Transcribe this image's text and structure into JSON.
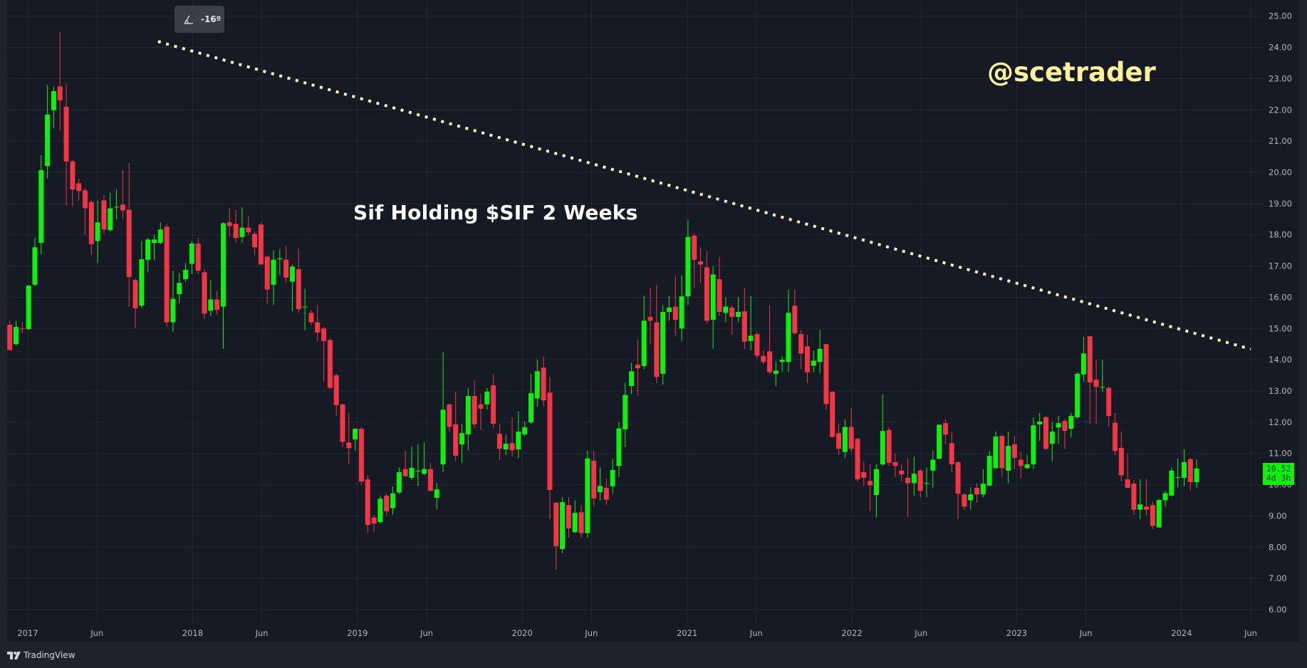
{
  "chart_title": "Sif Holding $SIF 2 Weeks",
  "watermark": "@scetrader",
  "angle_tooltip": {
    "icon": "angle-icon",
    "value": "-16º"
  },
  "last_price": {
    "value": "10.52",
    "countdown": "4d 3h",
    "color": "#0ef10e"
  },
  "footer": {
    "brand": "TradingView",
    "icon": "tradingview-logo-icon"
  },
  "colors": {
    "up": "#0ef10e",
    "down": "#f23645",
    "trendline": "#fff5c2",
    "background": "#161a25",
    "grid": "#242836"
  },
  "chart_data": {
    "type": "candlestick",
    "interval": "2W",
    "title": "Sif Holding $SIF 2 Weeks",
    "ylim": [
      6,
      25
    ],
    "y_ticks": [
      "6.00",
      "7.00",
      "8.00",
      "9.00",
      "10.00",
      "11.00",
      "12.00",
      "13.00",
      "14.00",
      "15.00",
      "16.00",
      "17.00",
      "18.00",
      "19.00",
      "20.00",
      "21.00",
      "22.00",
      "23.00",
      "24.00",
      "25.00"
    ],
    "x_ticks": [
      {
        "label": "2017",
        "t": 2017.0
      },
      {
        "label": "Jun",
        "t": 2017.42
      },
      {
        "label": "2018",
        "t": 2018.0
      },
      {
        "label": "Jun",
        "t": 2018.42
      },
      {
        "label": "2019",
        "t": 2019.0
      },
      {
        "label": "Jun",
        "t": 2019.42
      },
      {
        "label": "2020",
        "t": 2020.0
      },
      {
        "label": "Jun",
        "t": 2020.42
      },
      {
        "label": "2021",
        "t": 2021.0
      },
      {
        "label": "Jun",
        "t": 2021.42
      },
      {
        "label": "2022",
        "t": 2022.0
      },
      {
        "label": "Jun",
        "t": 2022.42
      },
      {
        "label": "2023",
        "t": 2023.0
      },
      {
        "label": "Jun",
        "t": 2023.42
      },
      {
        "label": "2024",
        "t": 2024.0
      },
      {
        "label": "Jun",
        "t": 2024.42
      }
    ],
    "first_bar_t": 2016.89,
    "bars_per_year": 26.1,
    "trendline": {
      "style": "dotted",
      "start": {
        "t": 2017.79,
        "price": 24.19
      },
      "end": {
        "t": 2024.42,
        "price": 14.34
      },
      "angle": "-16º"
    },
    "ohlc": [
      [
        15.12,
        15.25,
        14.3,
        14.31
      ],
      [
        14.5,
        15.25,
        14.45,
        15.05
      ],
      [
        15.0,
        15.2,
        14.85,
        14.98
      ],
      [
        14.98,
        16.4,
        14.95,
        16.37
      ],
      [
        16.4,
        17.9,
        16.35,
        17.6
      ],
      [
        17.74,
        20.55,
        17.38,
        20.07
      ],
      [
        20.2,
        22.8,
        19.8,
        21.85
      ],
      [
        21.99,
        22.75,
        21.4,
        22.6
      ],
      [
        22.75,
        24.5,
        21.35,
        22.3
      ],
      [
        22.1,
        22.85,
        18.95,
        20.35
      ],
      [
        20.35,
        20.4,
        18.9,
        19.45
      ],
      [
        19.65,
        19.8,
        19.1,
        19.4
      ],
      [
        19.42,
        19.5,
        18.0,
        18.85
      ],
      [
        19.05,
        19.1,
        17.35,
        17.7
      ],
      [
        17.8,
        19.1,
        17.1,
        18.4
      ],
      [
        19.1,
        19.27,
        18.03,
        18.17
      ],
      [
        18.15,
        19.35,
        18.1,
        18.85
      ],
      [
        18.9,
        19.45,
        18.5,
        18.9
      ],
      [
        18.97,
        20.07,
        18.5,
        18.78
      ],
      [
        18.8,
        20.3,
        15.7,
        16.65
      ],
      [
        16.55,
        16.6,
        15.0,
        15.65
      ],
      [
        15.73,
        17.8,
        15.65,
        17.22
      ],
      [
        17.2,
        17.9,
        16.8,
        17.85
      ],
      [
        17.74,
        18.0,
        17.2,
        17.85
      ],
      [
        17.74,
        18.4,
        17.7,
        18.17
      ],
      [
        18.26,
        18.35,
        15.05,
        15.2
      ],
      [
        15.2,
        16.85,
        14.9,
        15.95
      ],
      [
        16.1,
        16.78,
        15.8,
        16.46
      ],
      [
        16.58,
        17.1,
        16.5,
        16.88
      ],
      [
        17.07,
        17.8,
        16.74,
        17.72
      ],
      [
        17.72,
        17.9,
        16.75,
        16.85
      ],
      [
        16.8,
        16.9,
        15.3,
        15.48
      ],
      [
        15.57,
        16.55,
        15.4,
        15.93
      ],
      [
        15.93,
        16.2,
        15.45,
        15.6
      ],
      [
        15.7,
        18.4,
        14.35,
        18.37
      ],
      [
        18.4,
        18.85,
        17.95,
        18.28
      ],
      [
        18.35,
        18.8,
        17.75,
        17.9
      ],
      [
        17.93,
        18.88,
        17.75,
        18.23
      ],
      [
        18.23,
        18.6,
        18.0,
        18.08
      ],
      [
        18.03,
        18.1,
        17.35,
        17.6
      ],
      [
        18.33,
        18.4,
        17.05,
        17.05
      ],
      [
        17.3,
        17.35,
        15.78,
        16.25
      ],
      [
        16.4,
        17.5,
        15.75,
        17.2
      ],
      [
        17.24,
        17.55,
        16.7,
        17.24
      ],
      [
        17.2,
        17.65,
        16.45,
        16.63
      ],
      [
        16.5,
        17.05,
        15.55,
        16.98
      ],
      [
        16.9,
        17.55,
        15.5,
        15.62
      ],
      [
        15.7,
        16.27,
        14.95,
        15.7
      ],
      [
        15.5,
        15.6,
        15.1,
        15.2
      ],
      [
        15.2,
        15.75,
        14.6,
        14.87
      ],
      [
        15.0,
        15.05,
        13.3,
        14.6
      ],
      [
        14.63,
        14.7,
        13.05,
        13.1
      ],
      [
        13.5,
        13.55,
        12.2,
        12.55
      ],
      [
        12.57,
        12.6,
        11.2,
        11.37
      ],
      [
        11.35,
        12.3,
        10.65,
        11.17
      ],
      [
        11.45,
        11.8,
        11.1,
        11.79
      ],
      [
        11.79,
        11.85,
        10.0,
        10.1
      ],
      [
        10.17,
        10.3,
        8.46,
        8.71
      ],
      [
        8.95,
        9.03,
        8.48,
        8.75
      ],
      [
        8.8,
        9.65,
        8.75,
        9.55
      ],
      [
        9.65,
        9.7,
        9.0,
        9.15
      ],
      [
        9.25,
        9.95,
        9.05,
        9.72
      ],
      [
        9.75,
        10.55,
        9.7,
        10.4
      ],
      [
        10.5,
        11.1,
        10.25,
        10.27
      ],
      [
        10.22,
        11.22,
        10.15,
        10.54
      ],
      [
        10.45,
        11.3,
        9.95,
        10.45
      ],
      [
        10.35,
        11.35,
        10.3,
        10.5
      ],
      [
        10.5,
        10.7,
        9.8,
        9.8
      ],
      [
        9.58,
        10.05,
        9.2,
        9.85
      ],
      [
        10.65,
        14.25,
        10.4,
        12.4
      ],
      [
        12.57,
        12.6,
        11.7,
        11.85
      ],
      [
        11.93,
        12.98,
        10.75,
        10.93
      ],
      [
        11.29,
        11.95,
        10.7,
        11.65
      ],
      [
        11.61,
        13.1,
        11.1,
        12.84
      ],
      [
        12.84,
        13.35,
        11.8,
        11.93
      ],
      [
        12.57,
        12.9,
        11.75,
        12.43
      ],
      [
        12.57,
        13.1,
        12.4,
        12.98
      ],
      [
        13.18,
        13.55,
        11.8,
        11.95
      ],
      [
        11.63,
        11.95,
        10.8,
        11.15
      ],
      [
        11.13,
        11.6,
        10.95,
        11.31
      ],
      [
        11.33,
        12.15,
        10.9,
        11.1
      ],
      [
        11.13,
        12.35,
        10.85,
        11.7
      ],
      [
        11.61,
        12.02,
        11.55,
        11.84
      ],
      [
        12.0,
        13.55,
        11.95,
        12.93
      ],
      [
        12.76,
        14.0,
        12.5,
        13.63
      ],
      [
        13.75,
        14.1,
        12.5,
        12.7
      ],
      [
        12.95,
        13.45,
        8.9,
        9.83
      ],
      [
        9.42,
        9.45,
        7.28,
        8.03
      ],
      [
        7.94,
        9.6,
        7.8,
        9.44
      ],
      [
        9.35,
        9.6,
        8.3,
        8.6
      ],
      [
        8.48,
        9.5,
        8.45,
        9.1
      ],
      [
        9.12,
        9.35,
        8.3,
        8.45
      ],
      [
        8.45,
        11.1,
        8.3,
        10.84
      ],
      [
        10.77,
        11.1,
        9.3,
        9.56
      ],
      [
        9.76,
        10.55,
        9.5,
        9.96
      ],
      [
        9.9,
        10.2,
        9.35,
        9.52
      ],
      [
        9.95,
        10.84,
        9.7,
        10.47
      ],
      [
        10.6,
        12.0,
        10.25,
        11.8
      ],
      [
        11.77,
        13.27,
        11.2,
        12.87
      ],
      [
        13.16,
        13.9,
        12.9,
        13.63
      ],
      [
        13.84,
        14.65,
        12.85,
        13.73
      ],
      [
        13.8,
        16.05,
        13.7,
        15.25
      ],
      [
        15.37,
        16.3,
        14.5,
        15.25
      ],
      [
        15.2,
        16.4,
        13.25,
        13.45
      ],
      [
        13.55,
        15.75,
        13.2,
        15.53
      ],
      [
        15.53,
        16.05,
        15.25,
        15.67
      ],
      [
        15.7,
        16.7,
        14.75,
        15.28
      ],
      [
        15.0,
        16.7,
        14.6,
        16.03
      ],
      [
        16.03,
        18.47,
        15.75,
        17.93
      ],
      [
        17.97,
        18.05,
        16.3,
        17.2
      ],
      [
        17.15,
        17.6,
        16.45,
        17.05
      ],
      [
        16.96,
        17.48,
        15.15,
        15.25
      ],
      [
        15.28,
        17.0,
        14.35,
        16.73
      ],
      [
        16.58,
        17.3,
        15.4,
        15.53
      ],
      [
        15.5,
        16.0,
        15.2,
        15.7
      ],
      [
        15.67,
        15.75,
        14.8,
        15.37
      ],
      [
        15.37,
        16.0,
        15.2,
        15.53
      ],
      [
        15.55,
        16.3,
        14.35,
        14.58
      ],
      [
        14.6,
        16.05,
        14.3,
        14.77
      ],
      [
        14.82,
        14.9,
        14.05,
        14.13
      ],
      [
        14.12,
        14.3,
        13.85,
        13.93
      ],
      [
        14.27,
        15.75,
        13.55,
        13.6
      ],
      [
        13.55,
        13.95,
        13.15,
        13.65
      ],
      [
        13.93,
        14.12,
        13.6,
        14.0
      ],
      [
        13.93,
        16.25,
        13.6,
        15.5
      ],
      [
        15.73,
        16.25,
        14.8,
        14.85
      ],
      [
        14.82,
        14.95,
        13.7,
        14.2
      ],
      [
        14.43,
        14.8,
        13.25,
        13.6
      ],
      [
        13.81,
        14.3,
        13.6,
        13.97
      ],
      [
        13.93,
        14.95,
        13.55,
        14.35
      ],
      [
        14.5,
        14.5,
        12.4,
        12.58
      ],
      [
        12.97,
        13.0,
        11.5,
        11.53
      ],
      [
        11.65,
        11.95,
        10.95,
        11.15
      ],
      [
        11.05,
        12.1,
        10.85,
        11.85
      ],
      [
        11.85,
        12.45,
        11.05,
        11.15
      ],
      [
        11.47,
        11.5,
        10.1,
        10.17
      ],
      [
        10.4,
        10.75,
        9.95,
        10.22
      ],
      [
        10.12,
        10.65,
        9.15,
        9.98
      ],
      [
        9.67,
        10.65,
        8.95,
        10.5
      ],
      [
        10.65,
        12.9,
        10.6,
        11.72
      ],
      [
        11.75,
        11.85,
        10.6,
        10.7
      ],
      [
        10.72,
        11.0,
        10.25,
        10.6
      ],
      [
        10.45,
        10.65,
        10.1,
        10.33
      ],
      [
        10.22,
        10.85,
        8.98,
        10.05
      ],
      [
        10.05,
        10.9,
        9.65,
        10.35
      ],
      [
        10.45,
        10.5,
        9.6,
        9.8
      ],
      [
        10.05,
        10.55,
        9.6,
        10.05
      ],
      [
        10.45,
        11.1,
        9.9,
        10.8
      ],
      [
        10.83,
        11.93,
        10.8,
        11.92
      ],
      [
        11.97,
        12.1,
        11.3,
        11.6
      ],
      [
        11.33,
        11.7,
        10.4,
        10.65
      ],
      [
        10.72,
        10.75,
        8.9,
        9.71
      ],
      [
        9.69,
        9.75,
        9.2,
        9.3
      ],
      [
        9.5,
        9.92,
        9.2,
        9.69
      ],
      [
        9.9,
        10.05,
        9.42,
        9.69
      ],
      [
        9.69,
        10.5,
        9.6,
        10.03
      ],
      [
        9.97,
        11.07,
        9.95,
        10.92
      ],
      [
        10.53,
        11.7,
        10.5,
        11.54
      ],
      [
        11.56,
        11.6,
        10.25,
        10.53
      ],
      [
        10.45,
        11.7,
        10.05,
        11.24
      ],
      [
        11.29,
        11.55,
        10.5,
        10.86
      ],
      [
        10.8,
        11.05,
        10.2,
        10.6
      ],
      [
        10.53,
        10.95,
        10.5,
        10.65
      ],
      [
        10.65,
        12.15,
        10.5,
        11.9
      ],
      [
        11.93,
        12.3,
        11.4,
        12.02
      ],
      [
        12.16,
        12.2,
        11.1,
        11.15
      ],
      [
        11.31,
        12.0,
        10.75,
        11.7
      ],
      [
        11.83,
        12.2,
        11.3,
        11.97
      ],
      [
        12.04,
        12.1,
        11.15,
        11.72
      ],
      [
        11.79,
        12.3,
        11.5,
        12.2
      ],
      [
        12.16,
        13.6,
        12.1,
        13.55
      ],
      [
        13.53,
        14.74,
        13.3,
        14.2
      ],
      [
        14.75,
        14.75,
        11.95,
        13.27
      ],
      [
        13.36,
        14.0,
        11.95,
        13.13
      ],
      [
        13.13,
        14.0,
        12.97,
        13.13
      ],
      [
        13.1,
        13.15,
        11.85,
        12.2
      ],
      [
        11.98,
        12.3,
        10.95,
        11.08
      ],
      [
        11.18,
        11.7,
        10.1,
        10.3
      ],
      [
        10.17,
        11.0,
        9.9,
        9.9
      ],
      [
        10.03,
        10.15,
        9.03,
        9.2
      ],
      [
        9.2,
        10.18,
        8.9,
        9.37
      ],
      [
        9.3,
        10.18,
        9.02,
        9.2
      ],
      [
        9.35,
        9.45,
        8.58,
        8.68
      ],
      [
        8.63,
        9.55,
        8.63,
        9.51
      ],
      [
        9.5,
        9.8,
        9.3,
        9.73
      ],
      [
        9.65,
        10.55,
        9.63,
        10.45
      ],
      [
        10.24,
        10.83,
        9.92,
        10.24
      ],
      [
        10.22,
        11.13,
        9.95,
        10.72
      ],
      [
        10.82,
        10.85,
        9.8,
        10.08
      ],
      [
        10.08,
        10.81,
        9.9,
        10.52
      ]
    ]
  }
}
